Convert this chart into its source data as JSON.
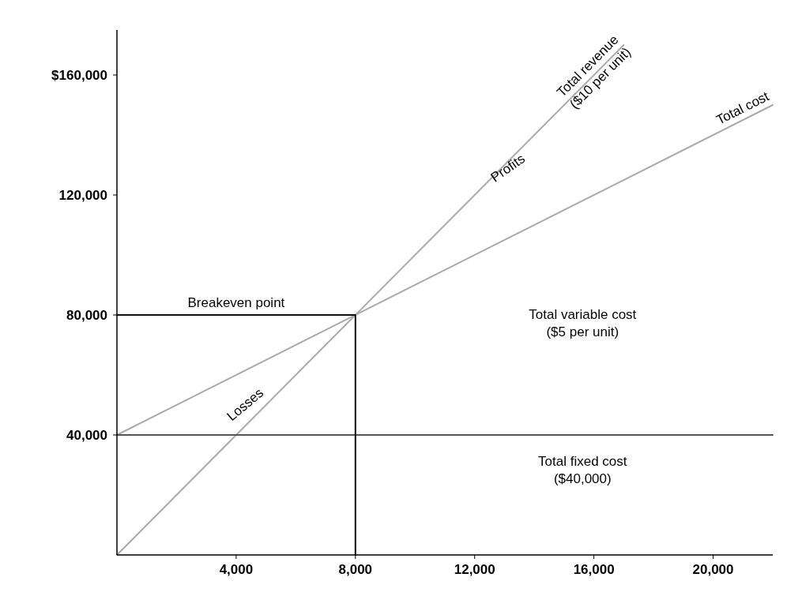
{
  "chart_data": {
    "type": "line",
    "xlim": [
      0,
      22000
    ],
    "ylim": [
      0,
      175000
    ],
    "xticks": [
      {
        "value": 4000,
        "label": "4,000"
      },
      {
        "value": 8000,
        "label": "8,000"
      },
      {
        "value": 12000,
        "label": "12,000"
      },
      {
        "value": 16000,
        "label": "16,000"
      },
      {
        "value": 20000,
        "label": "20,000"
      }
    ],
    "yticks": [
      {
        "value": 40000,
        "label": "40,000"
      },
      {
        "value": 80000,
        "label": "80,000"
      },
      {
        "value": 120000,
        "label": "120,000"
      },
      {
        "value": 160000,
        "label": "$160,000"
      }
    ],
    "series": [
      {
        "name": "Total revenue\n($10 per unit)",
        "color": "#aaaaaa",
        "x": [
          0,
          17000
        ],
        "values": [
          0,
          170000
        ]
      },
      {
        "name": "Total cost",
        "color": "#aaaaaa",
        "x": [
          0,
          22000
        ],
        "values": [
          40000,
          150000
        ]
      },
      {
        "color": "#555555",
        "x": [
          0,
          22000
        ],
        "values": [
          40000,
          40000
        ]
      },
      {
        "color": "#111111",
        "x": [
          0,
          8000,
          8000
        ],
        "values": [
          80000,
          80000,
          0
        ]
      }
    ],
    "annotations": [
      {
        "text": "Breakeven point",
        "x": 4000,
        "y": 80000
      },
      "Profits",
      "Losses",
      "Total variable cost\n($5 per unit)",
      "Total fixed cost\n($40,000)"
    ],
    "grid": false,
    "marker": "none",
    "line_style": "solid"
  }
}
